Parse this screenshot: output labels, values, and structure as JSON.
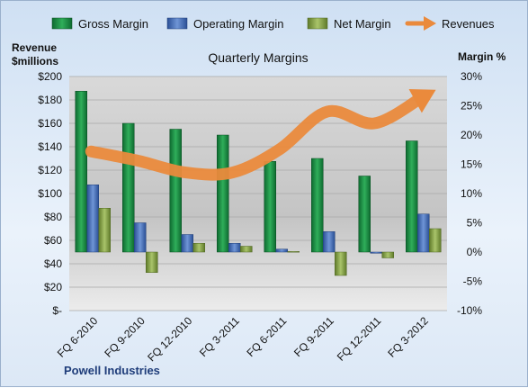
{
  "chart_data": {
    "type": "bar",
    "title": "Quarterly Margins",
    "left_axis_title_line1": "Revenue",
    "left_axis_title_line2": "$millions",
    "right_axis_title": "Margin %",
    "company": "Powell Industries",
    "categories": [
      "FQ 6-2010",
      "FQ 9-2010",
      "FQ 12-2010",
      "FQ 3-2011",
      "FQ 6-2011",
      "FQ 9-2011",
      "FQ 12-2011",
      "FQ 3-2012"
    ],
    "left_ticks": [
      "$-",
      "$20",
      "$40",
      "$60",
      "$80",
      "$100",
      "$120",
      "$140",
      "$160",
      "$180",
      "$200"
    ],
    "right_ticks": [
      "-10%",
      "-5%",
      "0%",
      "5%",
      "10%",
      "15%",
      "20%",
      "25%",
      "30%"
    ],
    "ylim_left": [
      0,
      200
    ],
    "ylim_right": [
      -10,
      30
    ],
    "series": [
      {
        "name": "Gross Margin",
        "axis": "right",
        "values": [
          27.5,
          22,
          21,
          20,
          15.5,
          16,
          13,
          19
        ],
        "color": "#1f8a45"
      },
      {
        "name": "Operating Margin",
        "axis": "right",
        "values": [
          11.5,
          5,
          3,
          1.5,
          0.5,
          3.5,
          -0.2,
          6.5
        ],
        "color": "#4a72b8"
      },
      {
        "name": "Net Margin",
        "axis": "right",
        "values": [
          7.5,
          -3.5,
          1.5,
          1,
          0.1,
          -4,
          -1,
          4
        ],
        "color": "#8aa84a"
      },
      {
        "name": "Revenues",
        "axis": "left",
        "type": "line",
        "values": [
          136,
          128,
          118,
          118,
          138,
          170,
          160,
          182
        ],
        "color": "#ea8a3c"
      }
    ],
    "grid": true,
    "legend_position": "top"
  }
}
